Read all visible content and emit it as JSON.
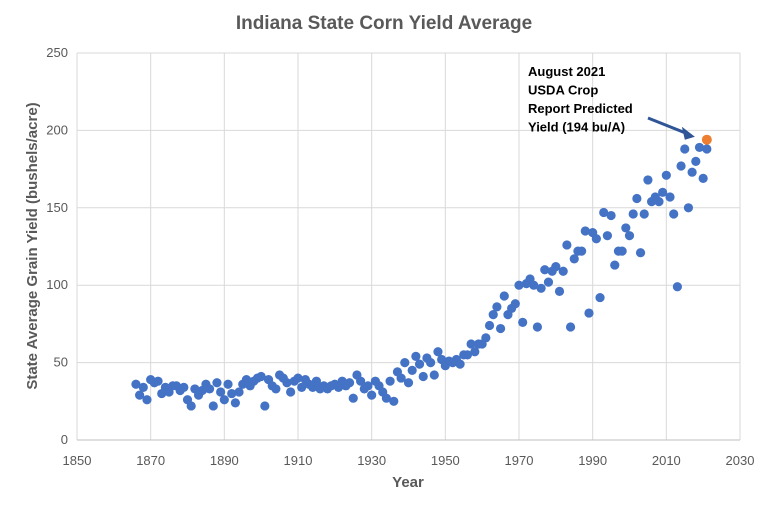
{
  "chart_data": {
    "type": "scatter",
    "title": "Indiana State Corn Yield Average",
    "xlabel": "Year",
    "ylabel": "State Average Grain Yield (bushels/acre)",
    "xlim": [
      1850,
      2030
    ],
    "ylim": [
      0,
      250
    ],
    "xticks": [
      1850,
      1870,
      1890,
      1910,
      1930,
      1950,
      1970,
      1990,
      2010,
      2030
    ],
    "yticks": [
      0,
      50,
      100,
      150,
      200,
      250
    ],
    "grid": true,
    "colors": {
      "series": "#4472c4",
      "highlight": "#ed7d31",
      "arrow": "#2f5597"
    },
    "series": [
      {
        "name": "",
        "points": [
          [
            1866,
            36
          ],
          [
            1867,
            29
          ],
          [
            1868,
            34
          ],
          [
            1869,
            26
          ],
          [
            1870,
            39
          ],
          [
            1871,
            37
          ],
          [
            1872,
            38
          ],
          [
            1873,
            30
          ],
          [
            1874,
            34
          ],
          [
            1875,
            31
          ],
          [
            1876,
            35
          ],
          [
            1877,
            35
          ],
          [
            1878,
            32
          ],
          [
            1879,
            34
          ],
          [
            1880,
            26
          ],
          [
            1881,
            22
          ],
          [
            1882,
            33
          ],
          [
            1883,
            29
          ],
          [
            1884,
            32
          ],
          [
            1885,
            36
          ],
          [
            1886,
            33
          ],
          [
            1887,
            22
          ],
          [
            1888,
            37
          ],
          [
            1889,
            31
          ],
          [
            1890,
            26
          ],
          [
            1891,
            36
          ],
          [
            1892,
            30
          ],
          [
            1893,
            24
          ],
          [
            1894,
            31
          ],
          [
            1895,
            36
          ],
          [
            1896,
            39
          ],
          [
            1897,
            35
          ],
          [
            1898,
            38
          ],
          [
            1899,
            40
          ],
          [
            1900,
            41
          ],
          [
            1901,
            22
          ],
          [
            1902,
            39
          ],
          [
            1903,
            35
          ],
          [
            1904,
            33
          ],
          [
            1905,
            42
          ],
          [
            1906,
            40
          ],
          [
            1907,
            37
          ],
          [
            1908,
            31
          ],
          [
            1909,
            38
          ],
          [
            1910,
            40
          ],
          [
            1911,
            34
          ],
          [
            1912,
            39
          ],
          [
            1913,
            36
          ],
          [
            1914,
            34
          ],
          [
            1915,
            38
          ],
          [
            1916,
            33
          ],
          [
            1917,
            35
          ],
          [
            1918,
            33
          ],
          [
            1919,
            35
          ],
          [
            1920,
            36
          ],
          [
            1921,
            34
          ],
          [
            1922,
            38
          ],
          [
            1923,
            35
          ],
          [
            1924,
            37
          ],
          [
            1925,
            27
          ],
          [
            1926,
            42
          ],
          [
            1927,
            38
          ],
          [
            1928,
            33
          ],
          [
            1929,
            35
          ],
          [
            1930,
            29
          ],
          [
            1931,
            38
          ],
          [
            1932,
            35
          ],
          [
            1933,
            31
          ],
          [
            1934,
            27
          ],
          [
            1935,
            38
          ],
          [
            1936,
            25
          ],
          [
            1937,
            44
          ],
          [
            1938,
            40
          ],
          [
            1939,
            50
          ],
          [
            1940,
            37
          ],
          [
            1941,
            45
          ],
          [
            1942,
            54
          ],
          [
            1943,
            49
          ],
          [
            1944,
            41
          ],
          [
            1945,
            53
          ],
          [
            1946,
            50
          ],
          [
            1947,
            42
          ],
          [
            1948,
            57
          ],
          [
            1949,
            52
          ],
          [
            1950,
            48
          ],
          [
            1951,
            51
          ],
          [
            1952,
            50
          ],
          [
            1953,
            52
          ],
          [
            1954,
            49
          ],
          [
            1955,
            55
          ],
          [
            1956,
            55
          ],
          [
            1957,
            62
          ],
          [
            1958,
            57
          ],
          [
            1959,
            62
          ],
          [
            1960,
            62
          ],
          [
            1961,
            66
          ],
          [
            1962,
            74
          ],
          [
            1963,
            81
          ],
          [
            1964,
            86
          ],
          [
            1965,
            72
          ],
          [
            1966,
            93
          ],
          [
            1967,
            81
          ],
          [
            1968,
            85
          ],
          [
            1969,
            88
          ],
          [
            1970,
            100
          ],
          [
            1971,
            76
          ],
          [
            1972,
            101
          ],
          [
            1973,
            104
          ],
          [
            1974,
            100
          ],
          [
            1975,
            73
          ],
          [
            1976,
            98
          ],
          [
            1977,
            110
          ],
          [
            1978,
            102
          ],
          [
            1979,
            109
          ],
          [
            1980,
            112
          ],
          [
            1981,
            96
          ],
          [
            1982,
            109
          ],
          [
            1983,
            126
          ],
          [
            1984,
            73
          ],
          [
            1985,
            117
          ],
          [
            1986,
            122
          ],
          [
            1987,
            122
          ],
          [
            1988,
            135
          ],
          [
            1989,
            82
          ],
          [
            1990,
            134
          ],
          [
            1991,
            130
          ],
          [
            1992,
            92
          ],
          [
            1993,
            147
          ],
          [
            1994,
            132
          ],
          [
            1995,
            145
          ],
          [
            1996,
            113
          ],
          [
            1997,
            122
          ],
          [
            1998,
            122
          ],
          [
            1999,
            137
          ],
          [
            2000,
            132
          ],
          [
            2001,
            146
          ],
          [
            2002,
            156
          ],
          [
            2003,
            121
          ],
          [
            2004,
            146
          ],
          [
            2005,
            168
          ],
          [
            2006,
            154
          ],
          [
            2007,
            157
          ],
          [
            2008,
            154
          ],
          [
            2009,
            160
          ],
          [
            2010,
            171
          ],
          [
            2011,
            157
          ],
          [
            2012,
            146
          ],
          [
            2013,
            99
          ],
          [
            2014,
            177
          ],
          [
            2015,
            188
          ],
          [
            2016,
            150
          ],
          [
            2017,
            173
          ],
          [
            2018,
            180
          ],
          [
            2019,
            189
          ],
          [
            2020,
            169
          ],
          [
            2021,
            188
          ]
        ]
      }
    ],
    "highlight_point": {
      "x": 2021,
      "y": 194
    },
    "annotation": {
      "lines": [
        "August 2021",
        "USDA Crop",
        "Report Predicted",
        "Yield (194 bu/A)"
      ]
    }
  }
}
